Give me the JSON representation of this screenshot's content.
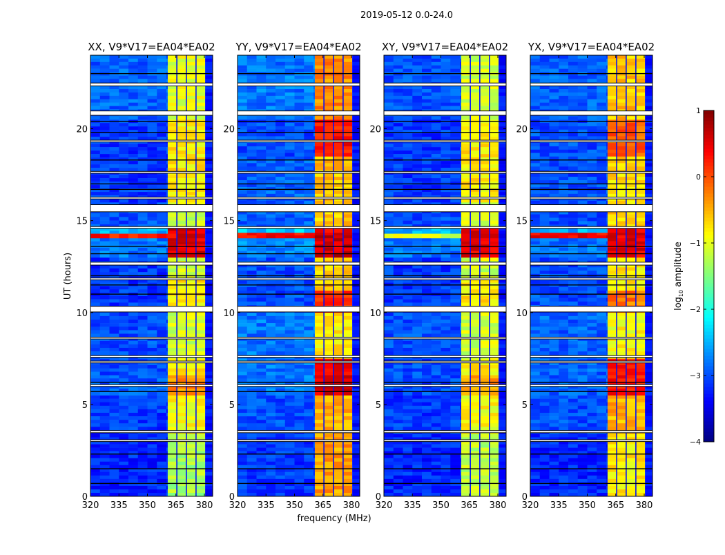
{
  "suptitle": "2019-05-12 0.0-24.0",
  "chart_data": {
    "type": "heatmap",
    "xlabel": "frequency (MHz)",
    "ylabel": "UT (hours)",
    "xlim": [
      320,
      384.4
    ],
    "ylim": [
      0,
      24
    ],
    "xticks": [
      320,
      335,
      350,
      365,
      380
    ],
    "yticks": [
      0,
      5,
      10,
      15,
      20
    ],
    "colorbar": {
      "label_main": "log",
      "label_sub": "10",
      "label_rest": " amplitude",
      "range": [
        -4,
        1
      ],
      "ticks": [
        1,
        0,
        -1,
        -2,
        -3,
        -4
      ],
      "colormap": "jet"
    },
    "band": {
      "start": 360.7,
      "end": 380.4,
      "separators": [
        365.5,
        370.5,
        375.6
      ],
      "separator_level": -3.3,
      "edge_level": -3.3
    },
    "flagged_intervals": [
      [
        3.0,
        3.06
      ],
      [
        3.48,
        3.56
      ],
      [
        6.0,
        6.06
      ],
      [
        7.28,
        7.34
      ],
      [
        7.58,
        7.64
      ],
      [
        8.58,
        8.64
      ],
      [
        10.05,
        10.32
      ],
      [
        11.8,
        11.86
      ],
      [
        12.6,
        12.72
      ],
      [
        14.6,
        14.66
      ],
      [
        15.5,
        15.85
      ],
      [
        16.2,
        16.26
      ],
      [
        17.6,
        17.66
      ],
      [
        19.3,
        19.36
      ],
      [
        20.75,
        20.95
      ],
      [
        22.35,
        22.47
      ]
    ],
    "black_lines": [
      0.7,
      1.5,
      2.3,
      5.7,
      6.2,
      11.0,
      11.5,
      12.0,
      13.2,
      13.6,
      16.7,
      17.0,
      18.3,
      19.8,
      20.4,
      23.0
    ],
    "panels": [
      {
        "title": "XX, V9*V17=EA04*EA02",
        "segments": [
          [
            0,
            3.4,
            -1.3,
            -3.2
          ],
          [
            3.4,
            5.5,
            -0.9,
            -3.1
          ],
          [
            5.5,
            6.6,
            -0.3,
            -2.9
          ],
          [
            6.6,
            7.5,
            -0.8,
            -3.0
          ],
          [
            7.5,
            10,
            -1.1,
            -3.0
          ],
          [
            10,
            11.8,
            -0.8,
            -3.1
          ],
          [
            11.8,
            13,
            -1.1,
            -3.1
          ],
          [
            13,
            14.05,
            0.5,
            -2.8
          ],
          [
            14.05,
            14.3,
            0.5,
            0.3
          ],
          [
            14.3,
            14.6,
            0.6,
            -2.5
          ],
          [
            14.6,
            16,
            -1.1,
            -3.0
          ],
          [
            16,
            20.5,
            -0.8,
            -3.1
          ],
          [
            20.5,
            24,
            -1.0,
            -2.9
          ]
        ]
      },
      {
        "title": "YY, V9*V17=EA04*EA02",
        "segments": [
          [
            0,
            3.4,
            -0.4,
            -3.1
          ],
          [
            3.4,
            5.5,
            -0.5,
            -3.0
          ],
          [
            5.5,
            7.5,
            0.5,
            -2.8
          ],
          [
            7.5,
            10,
            -0.8,
            -2.8
          ],
          [
            10,
            11.2,
            0.2,
            -3.0
          ],
          [
            11.2,
            13,
            -0.6,
            -3.0
          ],
          [
            13,
            14.05,
            0.6,
            -2.7
          ],
          [
            14.05,
            14.35,
            0.6,
            0.4
          ],
          [
            14.35,
            14.6,
            0.5,
            -2.4
          ],
          [
            14.6,
            18.5,
            -0.6,
            -2.9
          ],
          [
            18.5,
            20.5,
            0.3,
            -3.0
          ],
          [
            20.5,
            24,
            -0.3,
            -2.8
          ]
        ]
      },
      {
        "title": "XY, V9*V17=EA04*EA02",
        "segments": [
          [
            0,
            3.4,
            -1.2,
            -3.2
          ],
          [
            3.4,
            5.5,
            -0.9,
            -3.1
          ],
          [
            5.5,
            6.6,
            -0.4,
            -3.0
          ],
          [
            6.6,
            7.5,
            -0.8,
            -3.0
          ],
          [
            7.5,
            10,
            -1.1,
            -3.0
          ],
          [
            10,
            11.8,
            -0.8,
            -3.1
          ],
          [
            11.8,
            13,
            -1.1,
            -3.1
          ],
          [
            13,
            14.05,
            0.5,
            -2.8
          ],
          [
            14.05,
            14.3,
            0.5,
            -1.0
          ],
          [
            14.3,
            14.6,
            0.5,
            -2.5
          ],
          [
            14.6,
            16,
            -1.1,
            -3.0
          ],
          [
            16,
            20.5,
            -0.8,
            -3.1
          ],
          [
            20.5,
            24,
            -1.1,
            -3.0
          ]
        ]
      },
      {
        "title": "YX, V9*V17=EA04*EA02",
        "segments": [
          [
            0,
            3.4,
            -0.8,
            -3.2
          ],
          [
            3.4,
            5.5,
            -0.5,
            -3.0
          ],
          [
            5.5,
            7.5,
            0.3,
            -2.9
          ],
          [
            7.5,
            10,
            -0.9,
            -2.9
          ],
          [
            10,
            11.2,
            -0.2,
            -3.0
          ],
          [
            11.2,
            13,
            -0.8,
            -3.0
          ],
          [
            13,
            14.05,
            0.5,
            -2.8
          ],
          [
            14.05,
            14.35,
            0.5,
            0.4
          ],
          [
            14.35,
            14.6,
            0.5,
            -2.5
          ],
          [
            14.6,
            18.5,
            -0.7,
            -3.0
          ],
          [
            18.5,
            20.5,
            -0.1,
            -3.0
          ],
          [
            20.5,
            24,
            -0.6,
            -2.9
          ]
        ]
      }
    ]
  }
}
